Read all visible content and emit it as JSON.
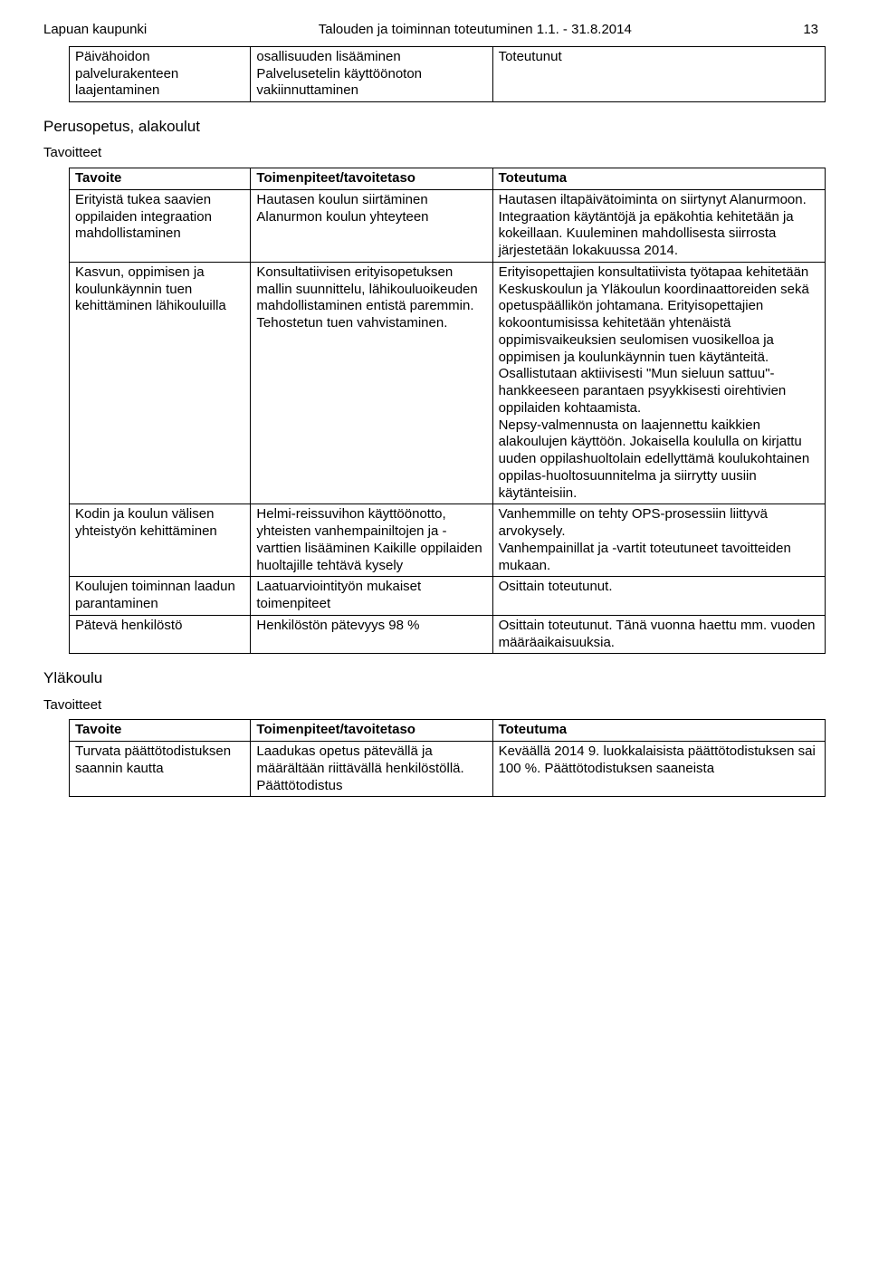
{
  "header": {
    "left": "Lapuan kaupunki",
    "mid": "Talouden ja toiminnan toteutuminen 1.1. - 31.8.2014",
    "page": "13"
  },
  "topTable": {
    "rows": [
      [
        "Päivähoidon palvelurakenteen laajentaminen",
        "osallisuuden lisääminen\nPalvelusetelin käyttöönoton vakiinnuttaminen",
        "Toteutunut"
      ]
    ]
  },
  "section1": {
    "heading": "Perusopetus, alakoulut",
    "sub": "Tavoitteet"
  },
  "mainTable": {
    "header": [
      "Tavoite",
      "Toimenpiteet/tavoitetaso",
      "Toteutuma"
    ],
    "rows": [
      [
        "Erityistä tukea saavien oppilaiden integraation mahdollistaminen",
        "Hautasen koulun siirtäminen Alanurmon koulun yhteyteen",
        "Hautasen iltapäivätoiminta on siirtynyt Alanurmoon. Integraation käytäntöjä ja epäkohtia kehitetään ja kokeillaan. Kuuleminen mahdollisesta siirrosta järjestetään lokakuussa 2014."
      ],
      [
        "Kasvun, oppimisen ja koulunkäynnin tuen kehittäminen lähikouluilla",
        "Konsultatiivisen erityisopetuksen mallin suunnittelu, lähikouluoikeuden mahdollistaminen entistä paremmin. Tehostetun tuen vahvistaminen.",
        "Erityisopettajien konsultatiivista työtapaa kehitetään Keskuskoulun ja Yläkoulun koordinaattoreiden sekä opetuspäällikön johtamana. Erityisopettajien kokoontumisissa kehitetään yhtenäistä oppimisvaikeuksien seulomisen vuosikelloa ja oppimisen ja koulunkäynnin tuen käytänteitä. Osallistutaan aktiivisesti \"Mun sieluun sattuu\"- hankkeeseen parantaen psyykkisesti oirehtivien oppilaiden kohtaamista.\nNepsy-valmennusta on laajennettu kaikkien alakoulujen käyttöön. Jokaisella koululla on kirjattu uuden oppilashuoltolain edellyttämä koulukohtainen oppilas-huoltosuunnitelma ja siirrytty uusiin käytänteisiin."
      ],
      [
        "Kodin ja koulun välisen yhteistyön kehittäminen",
        "Helmi-reissuvihon käyttöönotto, yhteisten vanhempainiltojen ja -varttien lisääminen Kaikille oppilaiden huoltajille tehtävä kysely",
        "Vanhemmille on tehty OPS-prosessiin liittyvä arvokysely.\nVanhempainillat ja -vartit toteutuneet tavoitteiden mukaan."
      ],
      [
        "Koulujen toiminnan laadun parantaminen",
        "Laatuarviointityön mukaiset toimenpiteet",
        "Osittain toteutunut."
      ],
      [
        "Pätevä henkilöstö",
        "Henkilöstön pätevyys 98 %",
        "Osittain toteutunut. Tänä vuonna haettu mm. vuoden määräaikaisuuksia."
      ]
    ]
  },
  "section2": {
    "heading": "Yläkoulu",
    "sub": "Tavoitteet"
  },
  "bottomTable": {
    "header": [
      "Tavoite",
      "Toimenpiteet/tavoitetaso",
      "Toteutuma"
    ],
    "rows": [
      [
        "Turvata päättötodistuksen saannin kautta",
        "Laadukas opetus pätevällä ja määrältään riittävällä henkilöstöllä. Päättötodistus",
        "Keväällä 2014 9. luokkalaisista päättötodistuksen sai 100 %. Päättötodistuksen saaneista"
      ]
    ]
  }
}
